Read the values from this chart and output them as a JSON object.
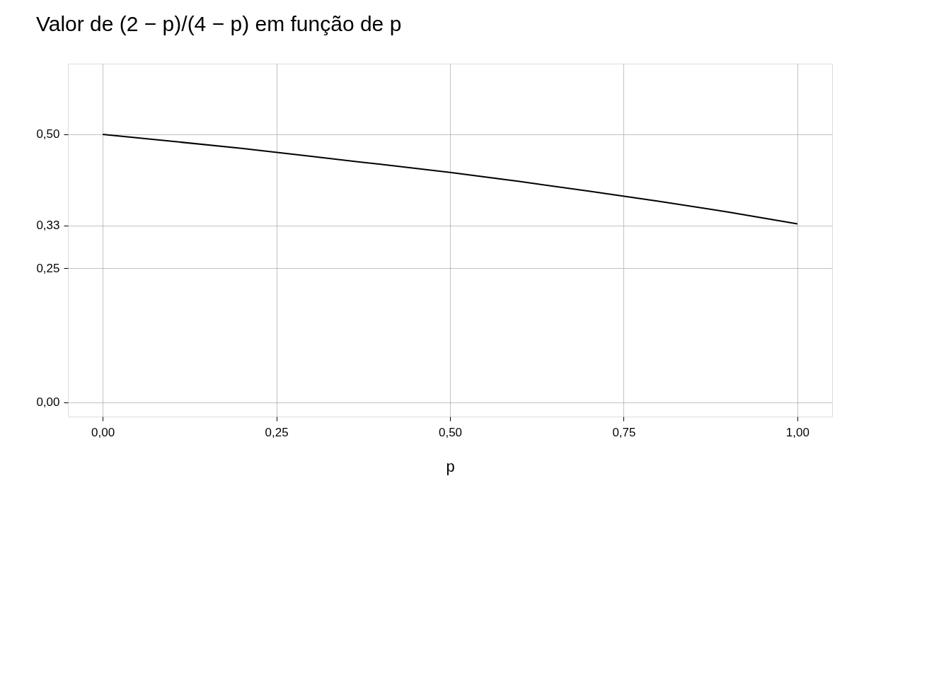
{
  "chart_data": {
    "type": "line",
    "title": "Valor de (2 − p)/(4 − p) em função de p",
    "xlabel": "p",
    "x": [
      0,
      0.1,
      0.2,
      0.3,
      0.4,
      0.5,
      0.6,
      0.7,
      0.8,
      0.9,
      1.0
    ],
    "series": [
      {
        "color": "#000000",
        "values": [
          0.5,
          0.487,
          0.474,
          0.459,
          0.444,
          0.429,
          0.412,
          0.394,
          0.375,
          0.355,
          0.333
        ]
      }
    ],
    "xlim": [
      -0.05,
      1.05
    ],
    "ylim": [
      -0.027,
      0.632
    ],
    "xticks": [
      {
        "value": 0,
        "label": "0,00"
      },
      {
        "value": 0.25,
        "label": "0,25"
      },
      {
        "value": 0.5,
        "label": "0,50"
      },
      {
        "value": 0.75,
        "label": "0,75"
      },
      {
        "value": 1.0,
        "label": "1,00"
      }
    ],
    "yticks": [
      {
        "value": 0,
        "label": "0,00"
      },
      {
        "value": 0.25,
        "label": "0,25"
      },
      {
        "value": 0.33,
        "label": "0,33"
      },
      {
        "value": 0.5,
        "label": "0,50"
      }
    ],
    "grid": true,
    "marker": "none",
    "line_style": "solid"
  }
}
